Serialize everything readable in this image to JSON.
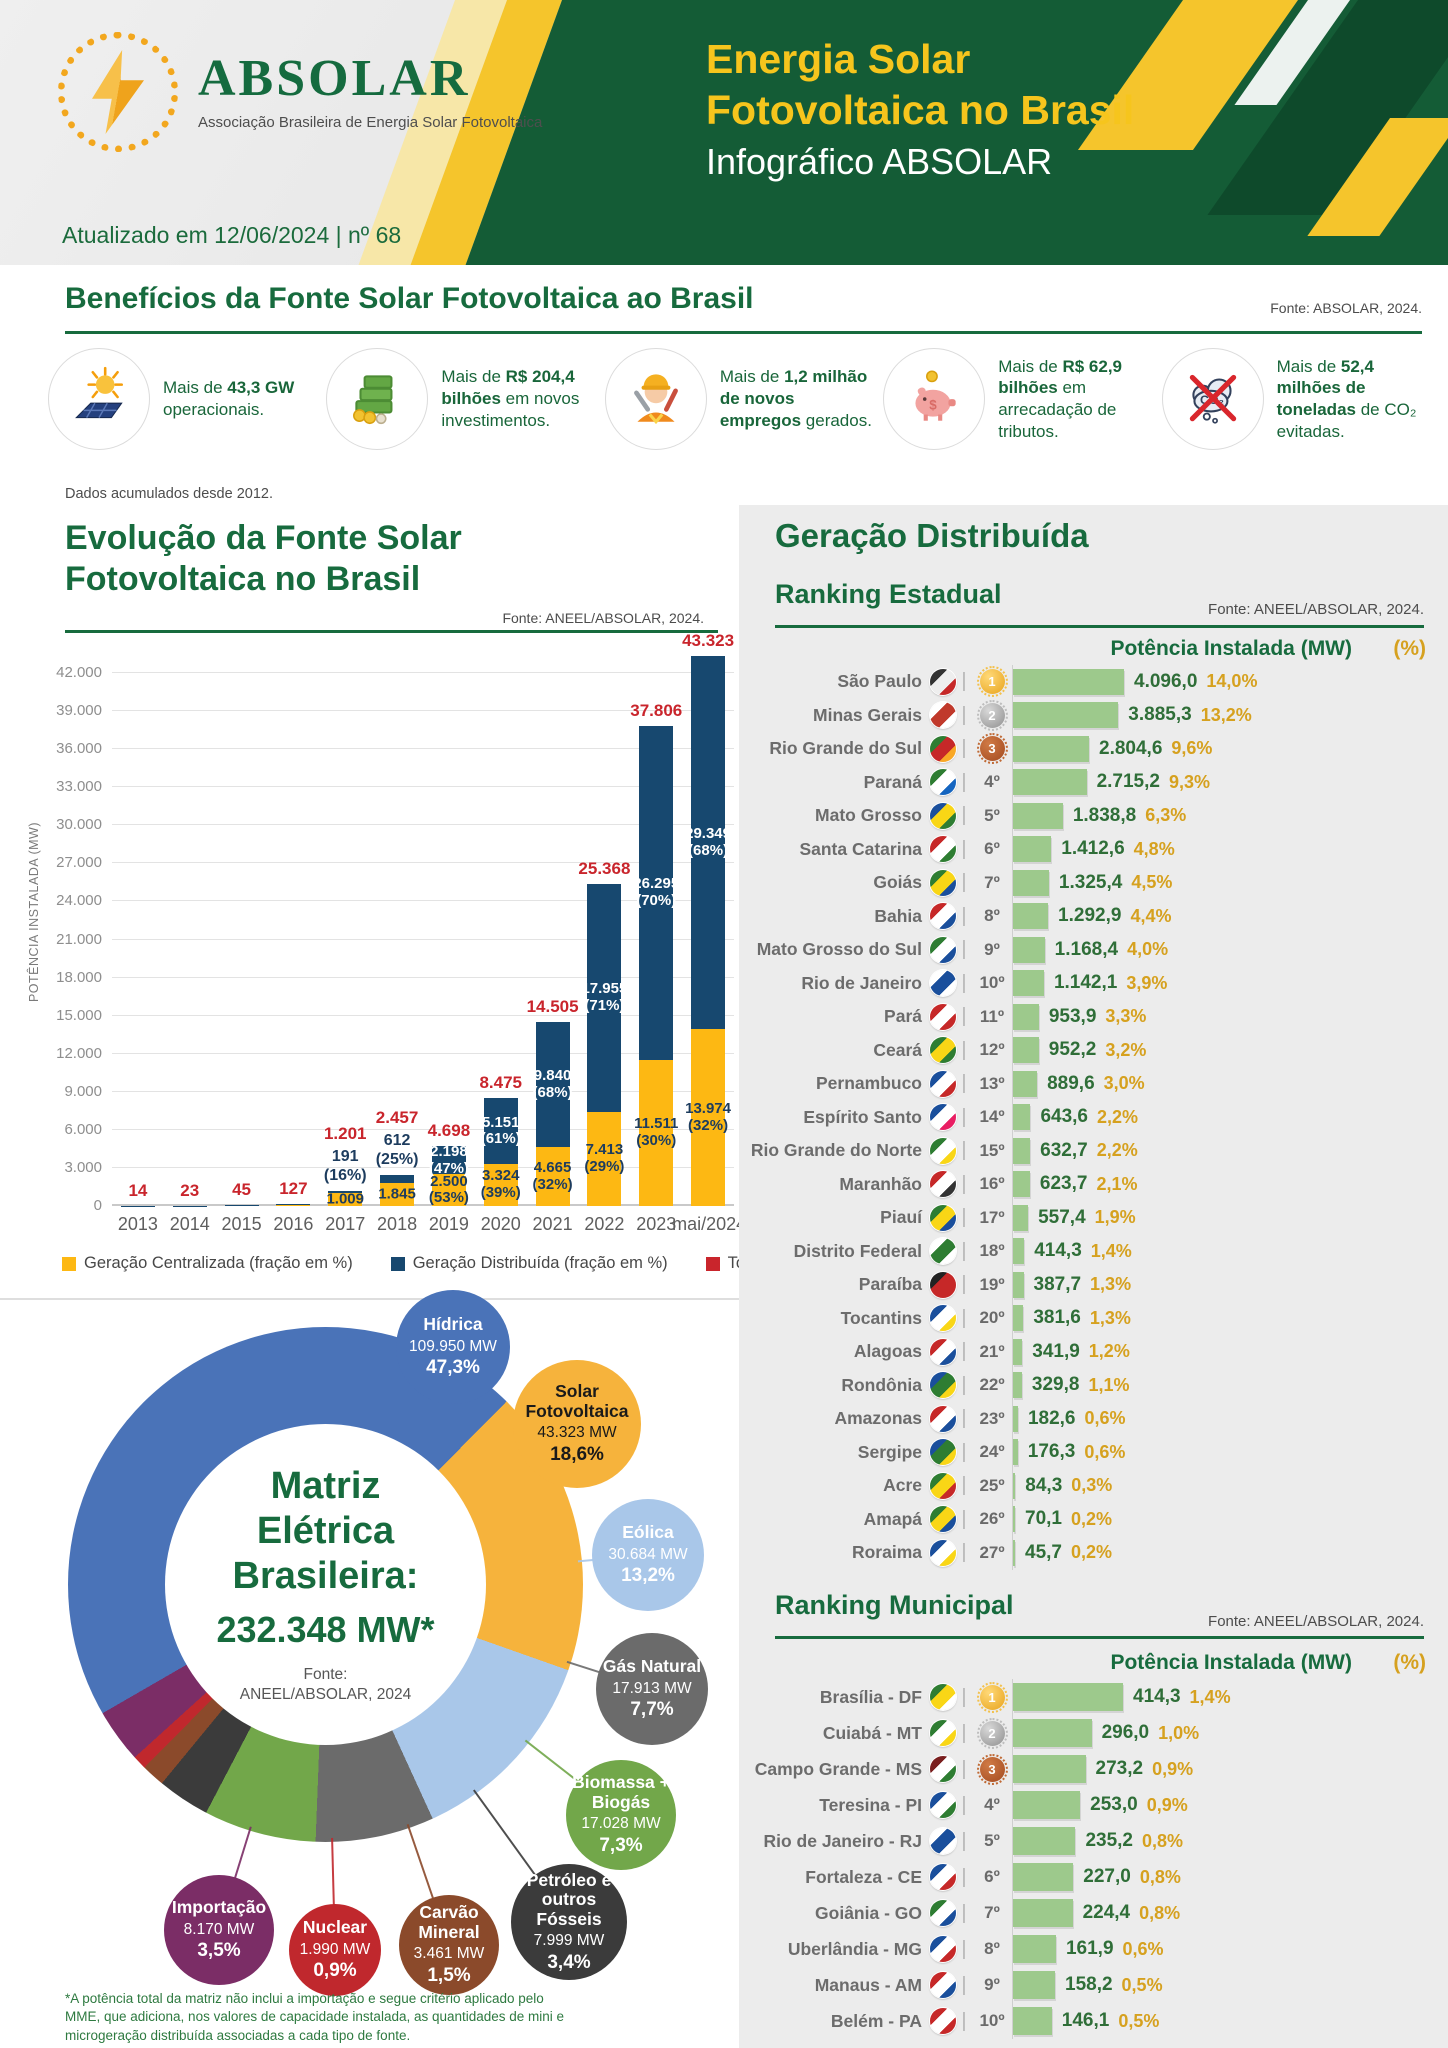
{
  "theme": {
    "green": "#176B3E",
    "panel_green": "#145C36",
    "yellow": "#F5C52C",
    "gold": "#D6A11F",
    "red": "#C9252C",
    "navy": "#17486F",
    "bar_yellow": "#FDB813",
    "ranking_bar": "#9DC98C",
    "panel_gray": "#ECECEC"
  },
  "header": {
    "logo_name": "ABSOLAR",
    "logo_subtitle": "Associação Brasileira de Energia Solar Fotovoltaica",
    "updated": "Atualizado em 12/06/2024 | nº 68",
    "title_line1": "Energia Solar",
    "title_line2": "Fotovoltaica no Brasil",
    "subtitle": "Infográfico ABSOLAR"
  },
  "benefits": {
    "title": "Benefícios da Fonte Solar Fotovoltaica ao Brasil",
    "source": "Fonte: ABSOLAR, 2024.",
    "footnote": "Dados acumulados desde 2012.",
    "items": [
      {
        "icon": "solar-panel-icon",
        "pre": "Mais de ",
        "bold": "43,3 GW",
        "post": " operacionais."
      },
      {
        "icon": "money-stack-icon",
        "pre": "Mais de ",
        "bold": "R$ 204,4 bilhões",
        "post": " em novos investimentos."
      },
      {
        "icon": "worker-icon",
        "pre": "Mais de ",
        "bold": "1,2 milhão de novos empregos",
        "post": " gerados."
      },
      {
        "icon": "piggy-bank-icon",
        "pre": "Mais de ",
        "bold": "R$ 62,9 bilhões",
        "post": " em arrecadação de tributos."
      },
      {
        "icon": "co2-avoided-icon",
        "pre": "Mais de ",
        "bold": "52,4 milhões de toneladas",
        "post": " de CO₂ evitadas."
      }
    ]
  },
  "chart_data": [
    {
      "id": "evolution",
      "type": "bar",
      "stacked": true,
      "title": "Evolução da Fonte Solar Fotovoltaica no Brasil",
      "title_lines": [
        "Evolução da Fonte Solar",
        "Fotovoltaica no Brasil"
      ],
      "source": "Fonte: ANEEL/ABSOLAR, 2024.",
      "ylabel": "POTÊNCIA INSTALADA (MW)",
      "ylim": [
        0,
        45000
      ],
      "ytick_step": 3000,
      "ytick_max": 42000,
      "grid": true,
      "legend_position": "bottom",
      "categories": [
        "2013",
        "2014",
        "2015",
        "2016",
        "2017",
        "2018",
        "2019",
        "2020",
        "2021",
        "2022",
        "2023",
        "mai/2024"
      ],
      "series": [
        {
          "name": "Geração Centralizada (fração em %)",
          "color": "#FDB813",
          "values": [
            0,
            0,
            0,
            60,
            1009,
            1845,
            2500,
            3324,
            4665,
            7413,
            11511,
            13974
          ]
        },
        {
          "name": "Geração Distribuída (fração em %)",
          "color": "#17486F",
          "values": [
            14,
            23,
            45,
            67,
            191,
            612,
            2198,
            5151,
            9840,
            17955,
            26295,
            29349
          ]
        },
        {
          "name": "Total (GC+GD)",
          "color": "#C9252C",
          "values": [
            14,
            23,
            45,
            127,
            1201,
            2457,
            4698,
            8475,
            14505,
            25368,
            37806,
            43323
          ]
        }
      ],
      "bar_labels": [
        {
          "total": "14"
        },
        {
          "total": "23"
        },
        {
          "total": "45"
        },
        {
          "total": "127"
        },
        {
          "total": "1.201",
          "gd_out": "191|(16%)",
          "gc_in": "1.009"
        },
        {
          "total": "2.457",
          "gd_out": "612|(25%)",
          "gc_in": "1.845"
        },
        {
          "total": "4.698",
          "gd_in": "2.198|(47%)",
          "gc_in": "2.500|(53%)"
        },
        {
          "total": "8.475",
          "gd_in": "5.151|(61%)",
          "gc_in": "3.324|(39%)"
        },
        {
          "total": "14.505",
          "gd_in": "9.840|(68%)",
          "gc_in": "4.665|(32%)"
        },
        {
          "total": "25.368",
          "gd_in": "17.955|(71%)",
          "gc_in": "7.413|(29%)"
        },
        {
          "total": "37.806",
          "gd_in": "26.295|(70%)",
          "gc_in": "11.511|(30%)"
        },
        {
          "total": "43.323",
          "gd_in": "29.349|(68%)",
          "gc_in": "13.974|(32%)"
        }
      ]
    },
    {
      "id": "matriz",
      "type": "pie",
      "donut": true,
      "start_angle_deg": 240,
      "center_lines": [
        "Matriz",
        "Elétrica",
        "Brasileira:"
      ],
      "center_value": "232.348 MW*",
      "center_source_lines": [
        "Fonte:",
        "ANEEL/ABSOLAR, 2024"
      ],
      "footnote": "*A potência total da matriz não inclui a importação e segue critério aplicado pelo MME, que adiciona, nos valores de capacidade instalada, as quantidades de mini e microgeração distribuída associadas a cada tipo de fonte.",
      "slices": [
        {
          "label": "Hídrica",
          "mw": "109.950 MW",
          "pct": "47,3%",
          "pct_num": 47.3,
          "color": "#4A73B8",
          "text_color": "#FFFFFF"
        },
        {
          "label": "Solar Fotovoltaica",
          "mw": "43.323 MW",
          "pct": "18,6%",
          "pct_num": 18.6,
          "color": "#F6B33C",
          "text_color": "#1A1A1A"
        },
        {
          "label": "Eólica",
          "mw": "30.684 MW",
          "pct": "13,2%",
          "pct_num": 13.2,
          "color": "#A9C7E9",
          "text_color": "#FFFFFF"
        },
        {
          "label": "Gás Natural",
          "mw": "17.913 MW",
          "pct": "7,7%",
          "pct_num": 7.7,
          "color": "#6B6B6B",
          "text_color": "#FFFFFF"
        },
        {
          "label": "Biomassa + Biogás",
          "mw": "17.028 MW",
          "pct": "7,3%",
          "pct_num": 7.3,
          "color": "#72A74A",
          "text_color": "#FFFFFF"
        },
        {
          "label": "Petróleo e outros Fósseis",
          "mw": "7.999 MW",
          "pct": "3,4%",
          "pct_num": 3.4,
          "color": "#3B3B3B",
          "text_color": "#FFFFFF"
        },
        {
          "label": "Carvão Mineral",
          "mw": "3.461 MW",
          "pct": "1,5%",
          "pct_num": 1.5,
          "color": "#8B4A2B",
          "text_color": "#FFFFFF"
        },
        {
          "label": "Nuclear",
          "mw": "1.990 MW",
          "pct": "0,9%",
          "pct_num": 0.9,
          "color": "#C0282D",
          "text_color": "#FFFFFF"
        },
        {
          "label": "Importação",
          "mw": "8.170 MW",
          "pct": "3,5%",
          "pct_num": 3.5,
          "color": "#7B2D66",
          "text_color": "#FFFFFF"
        }
      ]
    },
    {
      "id": "ranking-estadual",
      "type": "bar",
      "orientation": "horizontal",
      "section_title": "Geração Distribuída",
      "title": "Ranking Estadual",
      "source": "Fonte: ANEEL/ABSOLAR, 2024.",
      "col_header": "Potência Instalada (MW)",
      "col_header_pct": "(%)",
      "bar_color": "#9DC98C",
      "rows": [
        {
          "name": "São Paulo",
          "rank": 1,
          "rank_label": "1º",
          "value": 4096.0,
          "value_label": "4.096,0",
          "pct_label": "14,0%",
          "flag": [
            "#333333",
            "#EEEEEE",
            "#C62828"
          ]
        },
        {
          "name": "Minas Gerais",
          "rank": 2,
          "rank_label": "2º",
          "value": 3885.3,
          "value_label": "3.885,3",
          "pct_label": "13,2%",
          "flag": [
            "#FFFFFF",
            "#C0392B",
            "#FFFFFF"
          ]
        },
        {
          "name": "Rio Grande do Sul",
          "rank": 3,
          "rank_label": "3º",
          "value": 2804.6,
          "value_label": "2.804,6",
          "pct_label": "9,6%",
          "flag": [
            "#2E7D32",
            "#C62828",
            "#F9A825"
          ]
        },
        {
          "name": "Paraná",
          "rank": 4,
          "rank_label": "4º",
          "value": 2715.2,
          "value_label": "2.715,2",
          "pct_label": "9,3%",
          "flag": [
            "#2E7D32",
            "#FFFFFF",
            "#1565C0"
          ]
        },
        {
          "name": "Mato Grosso",
          "rank": 5,
          "rank_label": "5º",
          "value": 1838.8,
          "value_label": "1.838,8",
          "pct_label": "6,3%",
          "flag": [
            "#1A4F9C",
            "#F9D616",
            "#2E7D32"
          ]
        },
        {
          "name": "Santa Catarina",
          "rank": 6,
          "rank_label": "6º",
          "value": 1412.6,
          "value_label": "1.412,6",
          "pct_label": "4,8%",
          "flag": [
            "#C62828",
            "#FFFFFF",
            "#2E7D32"
          ]
        },
        {
          "name": "Goiás",
          "rank": 7,
          "rank_label": "7º",
          "value": 1325.4,
          "value_label": "1.325,4",
          "pct_label": "4,5%",
          "flag": [
            "#2E7D32",
            "#F9D616",
            "#1A4F9C"
          ]
        },
        {
          "name": "Bahia",
          "rank": 8,
          "rank_label": "8º",
          "value": 1292.9,
          "value_label": "1.292,9",
          "pct_label": "4,4%",
          "flag": [
            "#C62828",
            "#FFFFFF",
            "#1A4F9C"
          ]
        },
        {
          "name": "Mato Grosso do Sul",
          "rank": 9,
          "rank_label": "9º",
          "value": 1168.4,
          "value_label": "1.168,4",
          "pct_label": "4,0%",
          "flag": [
            "#2E7D32",
            "#FFFFFF",
            "#1A4F9C"
          ]
        },
        {
          "name": "Rio de Janeiro",
          "rank": 10,
          "rank_label": "10º",
          "value": 1142.1,
          "value_label": "1.142,1",
          "pct_label": "3,9%",
          "flag": [
            "#FFFFFF",
            "#1A4F9C",
            "#FFFFFF"
          ]
        },
        {
          "name": "Pará",
          "rank": 11,
          "rank_label": "11º",
          "value": 953.9,
          "value_label": "953,9",
          "pct_label": "3,3%",
          "flag": [
            "#C62828",
            "#FFFFFF",
            "#C62828"
          ]
        },
        {
          "name": "Ceará",
          "rank": 12,
          "rank_label": "12º",
          "value": 952.2,
          "value_label": "952,2",
          "pct_label": "3,2%",
          "flag": [
            "#2E7D32",
            "#F9D616",
            "#2E7D32"
          ]
        },
        {
          "name": "Pernambuco",
          "rank": 13,
          "rank_label": "13º",
          "value": 889.6,
          "value_label": "889,6",
          "pct_label": "3,0%",
          "flag": [
            "#1A4F9C",
            "#FFFFFF",
            "#C62828"
          ]
        },
        {
          "name": "Espírito Santo",
          "rank": 14,
          "rank_label": "14º",
          "value": 643.6,
          "value_label": "643,6",
          "pct_label": "2,2%",
          "flag": [
            "#1A4F9C",
            "#FFFFFF",
            "#E91E63"
          ]
        },
        {
          "name": "Rio Grande do Norte",
          "rank": 15,
          "rank_label": "15º",
          "value": 632.7,
          "value_label": "632,7",
          "pct_label": "2,2%",
          "flag": [
            "#2E7D32",
            "#FFFFFF",
            "#F9D616"
          ]
        },
        {
          "name": "Maranhão",
          "rank": 16,
          "rank_label": "16º",
          "value": 623.7,
          "value_label": "623,7",
          "pct_label": "2,1%",
          "flag": [
            "#C62828",
            "#FFFFFF",
            "#333333"
          ]
        },
        {
          "name": "Piauí",
          "rank": 17,
          "rank_label": "17º",
          "value": 557.4,
          "value_label": "557,4",
          "pct_label": "1,9%",
          "flag": [
            "#2E7D32",
            "#F9D616",
            "#1A4F9C"
          ]
        },
        {
          "name": "Distrito Federal",
          "rank": 18,
          "rank_label": "18º",
          "value": 414.3,
          "value_label": "414,3",
          "pct_label": "1,4%",
          "flag": [
            "#FFFFFF",
            "#2E7D32",
            "#FFFFFF"
          ]
        },
        {
          "name": "Paraíba",
          "rank": 19,
          "rank_label": "19º",
          "value": 387.7,
          "value_label": "387,7",
          "pct_label": "1,3%",
          "flag": [
            "#222222",
            "#C62828",
            "#C62828"
          ]
        },
        {
          "name": "Tocantins",
          "rank": 20,
          "rank_label": "20º",
          "value": 381.6,
          "value_label": "381,6",
          "pct_label": "1,3%",
          "flag": [
            "#1A4F9C",
            "#FFFFFF",
            "#F9D616"
          ]
        },
        {
          "name": "Alagoas",
          "rank": 21,
          "rank_label": "21º",
          "value": 341.9,
          "value_label": "341,9",
          "pct_label": "1,2%",
          "flag": [
            "#C62828",
            "#FFFFFF",
            "#1A4F9C"
          ]
        },
        {
          "name": "Rondônia",
          "rank": 22,
          "rank_label": "22º",
          "value": 329.8,
          "value_label": "329,8",
          "pct_label": "1,1%",
          "flag": [
            "#1A4F9C",
            "#2E7D32",
            "#F9D616"
          ]
        },
        {
          "name": "Amazonas",
          "rank": 23,
          "rank_label": "23º",
          "value": 182.6,
          "value_label": "182,6",
          "pct_label": "0,6%",
          "flag": [
            "#C62828",
            "#FFFFFF",
            "#1A4F9C"
          ]
        },
        {
          "name": "Sergipe",
          "rank": 24,
          "rank_label": "24º",
          "value": 176.3,
          "value_label": "176,3",
          "pct_label": "0,6%",
          "flag": [
            "#1A4F9C",
            "#2E7D32",
            "#F9D616"
          ]
        },
        {
          "name": "Acre",
          "rank": 25,
          "rank_label": "25º",
          "value": 84.3,
          "value_label": "84,3",
          "pct_label": "0,3%",
          "flag": [
            "#2E7D32",
            "#F9D616",
            "#C62828"
          ]
        },
        {
          "name": "Amapá",
          "rank": 26,
          "rank_label": "26º",
          "value": 70.1,
          "value_label": "70,1",
          "pct_label": "0,2%",
          "flag": [
            "#2E7D32",
            "#F9D616",
            "#1A4F9C"
          ]
        },
        {
          "name": "Roraima",
          "rank": 27,
          "rank_label": "27º",
          "value": 45.7,
          "value_label": "45,7",
          "pct_label": "0,2%",
          "flag": [
            "#1A4F9C",
            "#FFFFFF",
            "#F9D616"
          ]
        }
      ]
    },
    {
      "id": "ranking-municipal",
      "type": "bar",
      "orientation": "horizontal",
      "title": "Ranking Municipal",
      "source": "Fonte: ANEEL/ABSOLAR, 2024.",
      "col_header": "Potência Instalada (MW)",
      "col_header_pct": "(%)",
      "bar_color": "#9DC98C",
      "rows": [
        {
          "name": "Brasília - DF",
          "rank": 1,
          "rank_label": "1º",
          "value": 414.3,
          "value_label": "414,3",
          "pct_label": "1,4%",
          "flag": [
            "#2E7D32",
            "#F9D616",
            "#FFFFFF"
          ]
        },
        {
          "name": "Cuiabá - MT",
          "rank": 2,
          "rank_label": "2º",
          "value": 296.0,
          "value_label": "296,0",
          "pct_label": "1,0%",
          "flag": [
            "#2E7D32",
            "#FFFFFF",
            "#F9D616"
          ]
        },
        {
          "name": "Campo Grande - MS",
          "rank": 3,
          "rank_label": "3º",
          "value": 273.2,
          "value_label": "273,2",
          "pct_label": "0,9%",
          "flag": [
            "#7A1F1F",
            "#FFFFFF",
            "#2E7D32"
          ]
        },
        {
          "name": "Teresina - PI",
          "rank": 4,
          "rank_label": "4º",
          "value": 253.0,
          "value_label": "253,0",
          "pct_label": "0,9%",
          "flag": [
            "#1A4F9C",
            "#FFFFFF",
            "#2E7D32"
          ]
        },
        {
          "name": "Rio de Janeiro - RJ",
          "rank": 5,
          "rank_label": "5º",
          "value": 235.2,
          "value_label": "235,2",
          "pct_label": "0,8%",
          "flag": [
            "#FFFFFF",
            "#1A4F9C",
            "#FFFFFF"
          ]
        },
        {
          "name": "Fortaleza - CE",
          "rank": 6,
          "rank_label": "6º",
          "value": 227.0,
          "value_label": "227,0",
          "pct_label": "0,8%",
          "flag": [
            "#1A4F9C",
            "#FFFFFF",
            "#C62828"
          ]
        },
        {
          "name": "Goiânia - GO",
          "rank": 7,
          "rank_label": "7º",
          "value": 224.4,
          "value_label": "224,4",
          "pct_label": "0,8%",
          "flag": [
            "#2E7D32",
            "#FFFFFF",
            "#1A4F9C"
          ]
        },
        {
          "name": "Uberlândia - MG",
          "rank": 8,
          "rank_label": "8º",
          "value": 161.9,
          "value_label": "161,9",
          "pct_label": "0,6%",
          "flag": [
            "#1A4F9C",
            "#FFFFFF",
            "#C62828"
          ]
        },
        {
          "name": "Manaus - AM",
          "rank": 9,
          "rank_label": "9º",
          "value": 158.2,
          "value_label": "158,2",
          "pct_label": "0,5%",
          "flag": [
            "#C62828",
            "#FFFFFF",
            "#1A4F9C"
          ]
        },
        {
          "name": "Belém - PA",
          "rank": 10,
          "rank_label": "10º",
          "value": 146.1,
          "value_label": "146,1",
          "pct_label": "0,5%",
          "flag": [
            "#C62828",
            "#FFFFFF",
            "#C62828"
          ]
        }
      ]
    }
  ]
}
